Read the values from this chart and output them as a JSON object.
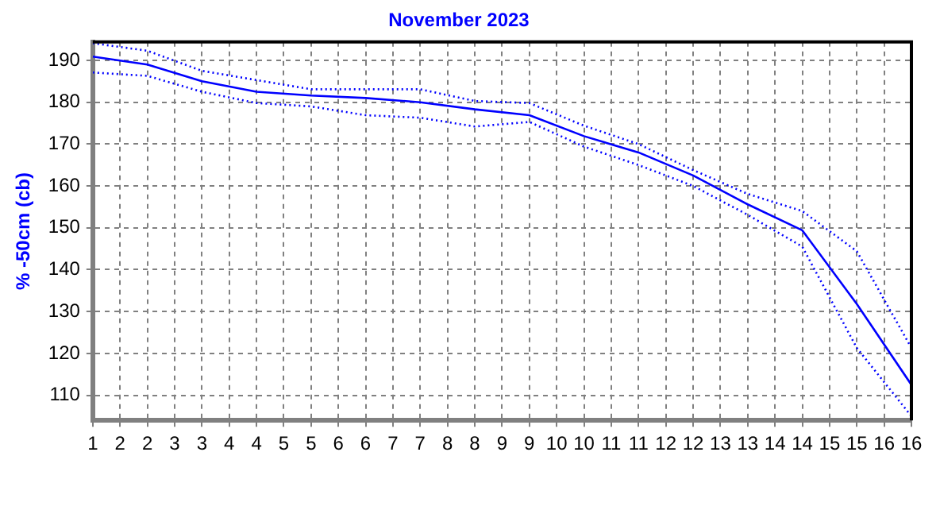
{
  "chart_data": {
    "type": "line",
    "title": "November 2023",
    "ylabel": "% -50cm (cb)",
    "x": [
      1,
      2,
      3,
      4,
      5,
      6,
      7,
      8,
      9,
      10,
      11,
      12,
      13,
      14,
      15,
      16
    ],
    "series": [
      {
        "color": "#0000ff",
        "line_style": "dotted",
        "values": [
          194.1,
          192.3,
          187.5,
          185.3,
          183.1,
          183.1,
          183.1,
          180.3,
          179.8,
          174.4,
          170,
          163.8,
          158.1,
          154,
          144.4,
          121.3
        ]
      },
      {
        "color": "#0000ff",
        "line_style": "solid",
        "values": [
          190.9,
          189,
          185,
          182.5,
          181.6,
          181,
          180,
          178.3,
          176.9,
          171.9,
          168,
          162.5,
          155.6,
          149.4,
          131.8,
          112.5
        ]
      },
      {
        "color": "#0000ff",
        "line_style": "dotted",
        "values": [
          187.1,
          186.3,
          182.5,
          179.8,
          179,
          176.9,
          176.3,
          174.2,
          175.3,
          169.4,
          165,
          160,
          153.1,
          145.5,
          121.3,
          105
        ]
      }
    ],
    "xlim": [
      1,
      16
    ],
    "xticks": [
      1,
      {
        "value": 1.5,
        "label": "2"
      },
      2,
      {
        "value": 2.5,
        "label": "3"
      },
      3,
      {
        "value": 3.5,
        "label": "4"
      },
      4,
      {
        "value": 4.5,
        "label": "5"
      },
      5,
      {
        "value": 5.5,
        "label": "6"
      },
      6,
      {
        "value": 6.5,
        "label": "7"
      },
      7,
      {
        "value": 7.5,
        "label": "8"
      },
      8,
      {
        "value": 8.5,
        "label": "9"
      },
      9,
      {
        "value": 9.5,
        "label": "10"
      },
      10,
      {
        "value": 10.5,
        "label": "11"
      },
      11,
      {
        "value": 11.5,
        "label": "12"
      },
      12,
      {
        "value": 12.5,
        "label": "13"
      },
      13,
      {
        "value": 13.5,
        "label": "14"
      },
      14,
      {
        "value": 14.5,
        "label": "15"
      },
      15,
      {
        "value": 15.5,
        "label": "16"
      },
      16
    ],
    "ylim": [
      104,
      194.4
    ],
    "yticks": [
      110,
      120,
      130,
      140,
      150,
      160,
      170,
      180,
      190
    ],
    "grid": true,
    "legend": false,
    "marker": "none"
  }
}
